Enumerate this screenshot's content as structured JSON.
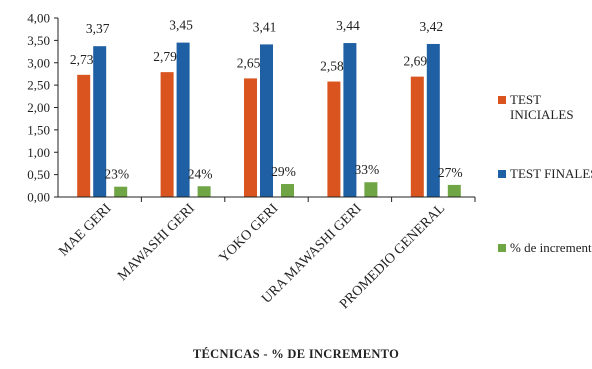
{
  "chart_data": {
    "type": "bar",
    "categories": [
      "MAE GERI",
      "MAWASHI GERI",
      "YOKO GERI",
      "URA MAWASHI GERI",
      "PROMEDIO GENERAL"
    ],
    "series": [
      {
        "name": "TEST INICIALES",
        "values": [
          2.73,
          2.79,
          2.65,
          2.58,
          2.69
        ],
        "labels": [
          "2,73",
          "2,79",
          "2,65",
          "2,58",
          "2,69"
        ],
        "color": "#d9541e"
      },
      {
        "name": "TEST FINALES",
        "values": [
          3.37,
          3.45,
          3.41,
          3.44,
          3.42
        ],
        "labels": [
          "3,37",
          "3,45",
          "3,41",
          "3,44",
          "3,42"
        ],
        "color": "#1f5fa3"
      },
      {
        "name": "% de incremento",
        "values": [
          0.23,
          0.24,
          0.29,
          0.33,
          0.27
        ],
        "labels": [
          "23%",
          "24%",
          "29%",
          "33%",
          "27%"
        ],
        "color": "#6fa544"
      }
    ],
    "ylim": [
      0,
      4
    ],
    "yticks": [
      "0,00",
      "0,50",
      "1,00",
      "1,50",
      "2,00",
      "2,50",
      "3,00",
      "3,50",
      "4,00"
    ],
    "xlabel": "TÉCNICAS  -  % DE INCREMENTO",
    "ylabel": "",
    "grid": false,
    "legend_position": "right"
  }
}
